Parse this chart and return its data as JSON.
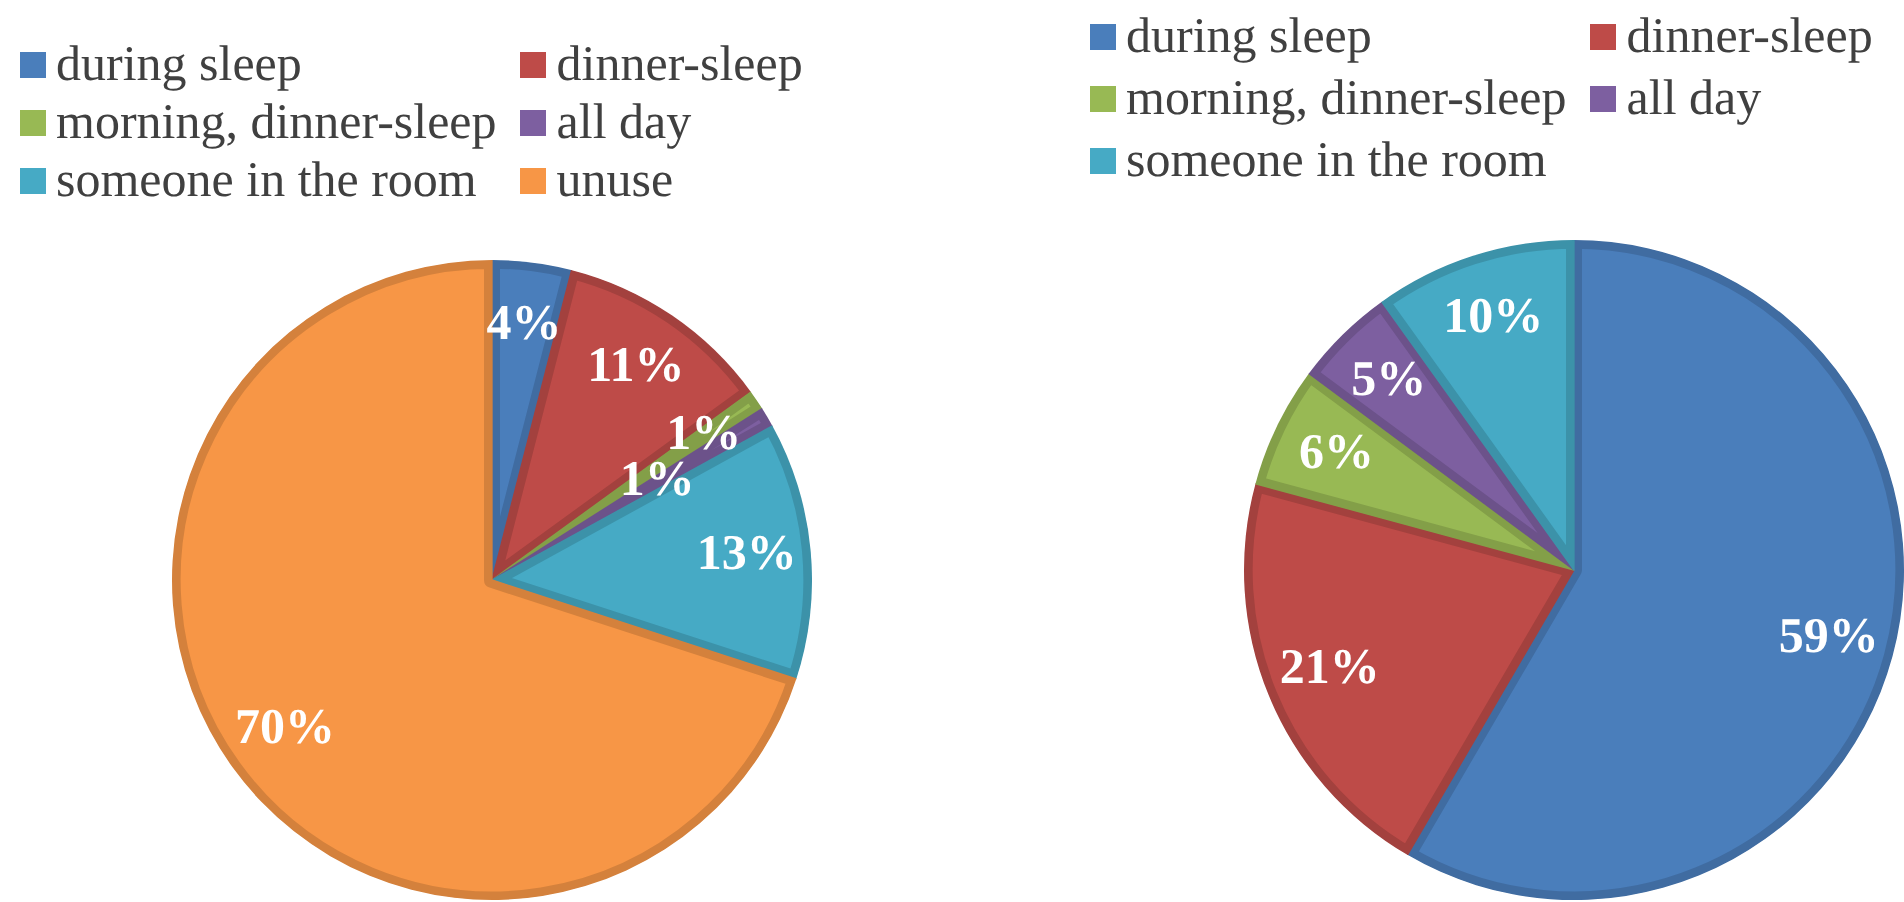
{
  "chart_data": [
    {
      "type": "pie",
      "categories": [
        "during sleep",
        "dinner-sleep",
        "morning, dinner-sleep",
        "all day",
        "someone in the room",
        "unuse"
      ],
      "values": [
        4,
        11,
        1,
        1,
        13,
        70
      ],
      "colors": [
        "#4a7ebb",
        "#be4b48",
        "#98b954",
        "#7d5fa0",
        "#46aac5",
        "#f79646"
      ],
      "value_labels": [
        "4%",
        "11%",
        "1%",
        "1%",
        "13%",
        "70%"
      ],
      "legend": "top"
    },
    {
      "type": "pie",
      "categories": [
        "during sleep",
        "dinner-sleep",
        "morning, dinner-sleep",
        "all day",
        "someone in the room"
      ],
      "values": [
        59,
        21,
        6,
        5,
        10
      ],
      "colors": [
        "#4a7ebb",
        "#be4b48",
        "#98b954",
        "#7d5fa0",
        "#46aac5"
      ],
      "value_labels": [
        "59%",
        "21%",
        "6%",
        "5%",
        "10%"
      ],
      "legend": "top"
    }
  ]
}
